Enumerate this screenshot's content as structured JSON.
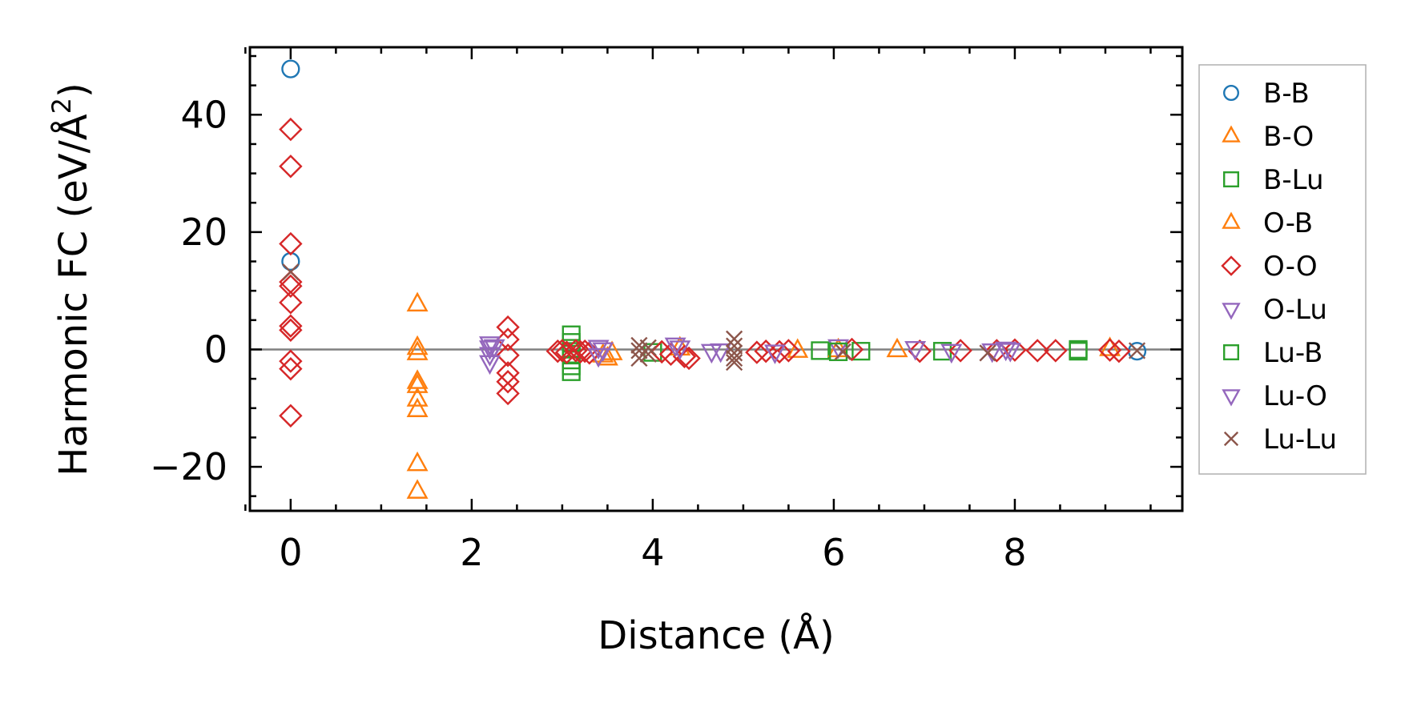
{
  "chart_data": {
    "type": "scatter",
    "title": "",
    "xlabel": "Distance (Å)",
    "ylabel": "Harmonic FC (eV/Å",
    "ylabel_sup": "2",
    "ylabel_close": ")",
    "xlim": [
      -0.45,
      9.85
    ],
    "ylim": [
      -27.5,
      51.5
    ],
    "xticks": [
      0,
      2,
      4,
      6,
      8
    ],
    "xtick_labels": [
      "0",
      "2",
      "4",
      "6",
      "8"
    ],
    "yticks": [
      -20,
      0,
      20,
      40
    ],
    "ytick_labels": [
      "−20",
      "0",
      "20",
      "40"
    ],
    "zero_line": true,
    "grid": false,
    "legend_position": "outside-right",
    "series": [
      {
        "name": "B-B",
        "marker": "circle",
        "color": "#1f77b4",
        "points": [
          [
            0,
            47.8
          ],
          [
            0,
            15.0
          ],
          [
            9.35,
            -0.3
          ]
        ]
      },
      {
        "name": "B-O",
        "marker": "triangle-up",
        "color": "#ff7f0e",
        "points": [
          [
            1.4,
            7.7
          ],
          [
            1.4,
            0.3
          ],
          [
            1.4,
            -0.6
          ],
          [
            1.4,
            -5.5
          ],
          [
            1.4,
            -6.2
          ],
          [
            1.4,
            -8.5
          ],
          [
            1.4,
            -10.3
          ],
          [
            1.4,
            -19.5
          ],
          [
            1.4,
            -24.2
          ],
          [
            3.55,
            -0.6
          ],
          [
            5.6,
            -0.2
          ],
          [
            6.7,
            -0.1
          ],
          [
            9.05,
            0.1
          ]
        ]
      },
      {
        "name": "B-Lu",
        "marker": "square",
        "color": "#2ca02c",
        "points": [
          [
            3.1,
            2.5
          ],
          [
            3.1,
            1.2
          ],
          [
            3.1,
            0.2
          ],
          [
            3.1,
            -0.8
          ],
          [
            3.1,
            -1.8
          ],
          [
            3.1,
            -2.8
          ],
          [
            3.1,
            -3.8
          ],
          [
            4.0,
            -0.5
          ],
          [
            5.85,
            -0.2
          ],
          [
            6.3,
            -0.3
          ],
          [
            7.2,
            -0.3
          ],
          [
            8.7,
            -0.3
          ]
        ]
      },
      {
        "name": "O-B",
        "marker": "triangle-up",
        "color": "#ff7f0e",
        "points": [
          [
            3.45,
            -1.0
          ],
          [
            3.5,
            -1.5
          ],
          [
            4.3,
            0.2
          ],
          [
            6.05,
            -0.1
          ]
        ]
      },
      {
        "name": "O-O",
        "marker": "diamond",
        "color": "#d62728",
        "points": [
          [
            0,
            37.5
          ],
          [
            0,
            31.2
          ],
          [
            0,
            18.0
          ],
          [
            0,
            11.5
          ],
          [
            0,
            10.8
          ],
          [
            0,
            8.0
          ],
          [
            0,
            4.0
          ],
          [
            0,
            3.3
          ],
          [
            0,
            -2.0
          ],
          [
            0,
            -3.3
          ],
          [
            0,
            -11.3
          ],
          [
            2.4,
            3.8
          ],
          [
            2.4,
            1.7
          ],
          [
            2.4,
            -1.0
          ],
          [
            2.4,
            -4.0
          ],
          [
            2.4,
            -5.5
          ],
          [
            2.4,
            -7.5
          ],
          [
            2.95,
            -0.3
          ],
          [
            3.0,
            -0.2
          ],
          [
            3.05,
            -0.5
          ],
          [
            3.15,
            -0.2
          ],
          [
            3.2,
            -0.4
          ],
          [
            3.25,
            -0.3
          ],
          [
            3.3,
            -0.6
          ],
          [
            4.1,
            -0.4
          ],
          [
            4.2,
            -0.8
          ],
          [
            4.35,
            -1.2
          ],
          [
            4.4,
            -1.5
          ],
          [
            5.15,
            -0.5
          ],
          [
            5.25,
            -0.3
          ],
          [
            5.4,
            -0.4
          ],
          [
            5.5,
            -0.2
          ],
          [
            6.2,
            0.0
          ],
          [
            6.95,
            -0.3
          ],
          [
            7.4,
            -0.2
          ],
          [
            7.8,
            -0.2
          ],
          [
            8.0,
            -0.1
          ],
          [
            8.25,
            -0.2
          ],
          [
            8.45,
            -0.2
          ],
          [
            9.05,
            -0.1
          ],
          [
            9.15,
            -0.3
          ]
        ]
      },
      {
        "name": "O-Lu",
        "marker": "triangle-down",
        "color": "#9467bd",
        "points": [
          [
            2.2,
            1.0
          ],
          [
            2.2,
            0.3
          ],
          [
            2.2,
            -0.8
          ],
          [
            2.2,
            -2.2
          ],
          [
            3.4,
            0.4
          ],
          [
            3.4,
            -1.0
          ],
          [
            4.3,
            0.3
          ],
          [
            6.05,
            0.5
          ],
          [
            6.9,
            0.2
          ],
          [
            7.95,
            -0.1
          ]
        ]
      },
      {
        "name": "Lu-B",
        "marker": "square",
        "color": "#2ca02c",
        "points": [
          [
            6.05,
            -0.4
          ],
          [
            8.7,
            0.0
          ]
        ]
      },
      {
        "name": "Lu-O",
        "marker": "triangle-down",
        "color": "#9467bd",
        "points": [
          [
            2.25,
            0.5
          ],
          [
            3.45,
            0.0
          ],
          [
            4.25,
            0.8
          ],
          [
            4.65,
            -0.3
          ],
          [
            4.75,
            -0.2
          ],
          [
            5.35,
            -0.4
          ],
          [
            7.3,
            -0.3
          ],
          [
            7.75,
            -0.2
          ],
          [
            7.9,
            0.1
          ]
        ]
      },
      {
        "name": "Lu-Lu",
        "marker": "cross",
        "color": "#8c564b",
        "points": [
          [
            0,
            13.2
          ],
          [
            3.85,
            0.7
          ],
          [
            3.85,
            -0.2
          ],
          [
            3.85,
            -1.5
          ],
          [
            3.95,
            0.3
          ],
          [
            3.95,
            -0.8
          ],
          [
            4.9,
            1.8
          ],
          [
            4.9,
            0.6
          ],
          [
            4.9,
            -0.6
          ],
          [
            4.9,
            -1.5
          ],
          [
            4.9,
            -2.2
          ],
          [
            6.1,
            -0.4
          ],
          [
            7.7,
            -0.6
          ],
          [
            9.35,
            -0.2
          ]
        ]
      }
    ]
  }
}
